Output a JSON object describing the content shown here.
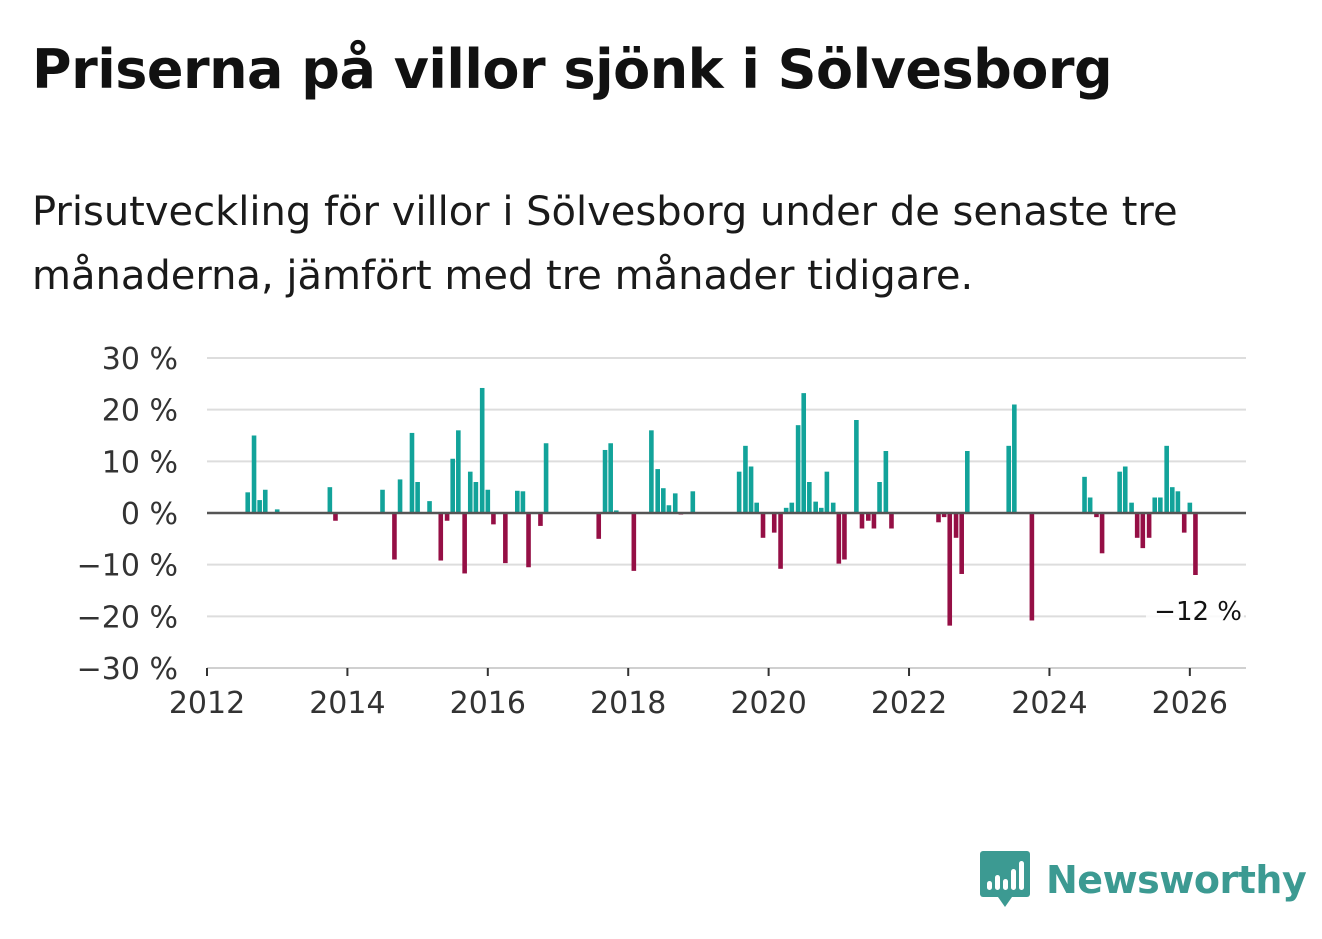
{
  "title": "Priserna på villor sjönk i Sölvesborg",
  "subtitle": "Prisutveckling för villor i Sölvesborg under de senaste tre månaderna, jämfört med tre månader tidigare.",
  "brand": {
    "name": "Newsworthy",
    "icon": "newsworthy-logo-icon",
    "color": "#3c9a92"
  },
  "colors": {
    "positive": "#12a39a",
    "negative": "#950f45",
    "grid": "#dddddd",
    "zero": "#555555"
  },
  "chart_data": {
    "type": "bar",
    "title": "Priserna på villor sjönk i Sölvesborg",
    "xlabel": "",
    "ylabel": "",
    "ylim": [
      -30,
      30
    ],
    "yticks": [
      30,
      20,
      10,
      0,
      -10,
      -20,
      -30
    ],
    "ytick_labels": [
      "30 %",
      "20 %",
      "10 %",
      "0 %",
      "−10 %",
      "−20 %",
      "−30 %"
    ],
    "xlim": [
      2012,
      2026.8
    ],
    "xticks": [
      2012,
      2014,
      2016,
      2018,
      2020,
      2022,
      2024,
      2026
    ],
    "xtick_labels": [
      "2012",
      "2014",
      "2016",
      "2018",
      "2020",
      "2022",
      "2024",
      "2026"
    ],
    "annotation": {
      "text": "−12 %",
      "x": 2026.08,
      "y": -12
    },
    "x": [
      2012.58,
      2012.67,
      2012.75,
      2012.83,
      2013.0,
      2013.75,
      2013.83,
      2014.5,
      2014.67,
      2014.75,
      2014.92,
      2015.0,
      2015.17,
      2015.33,
      2015.42,
      2015.5,
      2015.58,
      2015.67,
      2015.75,
      2015.83,
      2015.92,
      2016.0,
      2016.08,
      2016.25,
      2016.42,
      2016.5,
      2016.58,
      2016.75,
      2016.83,
      2017.58,
      2017.67,
      2017.75,
      2017.83,
      2018.08,
      2018.33,
      2018.42,
      2018.5,
      2018.58,
      2018.67,
      2018.75,
      2018.92,
      2019.58,
      2019.67,
      2019.75,
      2019.83,
      2019.92,
      2020.08,
      2020.17,
      2020.25,
      2020.33,
      2020.42,
      2020.5,
      2020.58,
      2020.67,
      2020.75,
      2020.83,
      2020.92,
      2021.0,
      2021.08,
      2021.25,
      2021.33,
      2021.42,
      2021.5,
      2021.58,
      2021.67,
      2021.75,
      2022.42,
      2022.5,
      2022.58,
      2022.67,
      2022.75,
      2022.83,
      2023.42,
      2023.5,
      2023.75,
      2024.5,
      2024.58,
      2024.67,
      2024.75,
      2025.0,
      2025.08,
      2025.17,
      2025.25,
      2025.33,
      2025.42,
      2025.5,
      2025.58,
      2025.67,
      2025.75,
      2025.83,
      2025.92,
      2026.0,
      2026.08
    ],
    "values": [
      4,
      15,
      2.5,
      4.5,
      0.7,
      5,
      -1.5,
      4.5,
      -9,
      6.5,
      15.5,
      6,
      2.3,
      -9.2,
      -1.5,
      10.5,
      16,
      -11.7,
      8,
      6,
      24.2,
      4.5,
      -2.2,
      -9.7,
      4.3,
      4.2,
      -10.5,
      -2.5,
      13.5,
      -5,
      12.2,
      13.5,
      0.5,
      -11.2,
      16,
      8.5,
      4.8,
      1.5,
      3.8,
      -0.3,
      4.2,
      8,
      13,
      9,
      2,
      -4.8,
      -3.8,
      -10.8,
      1,
      2,
      17,
      23.2,
      6,
      2.2,
      1,
      8,
      2,
      -9.8,
      -9,
      18,
      -3,
      -1.5,
      -3,
      6,
      12,
      -3,
      -1.8,
      -0.8,
      -21.8,
      -4.8,
      -11.8,
      12,
      13,
      21,
      -20.8,
      7,
      3,
      -0.8,
      -7.8,
      8,
      9,
      2,
      -4.8,
      -6.8,
      -4.8,
      3,
      3,
      13,
      5,
      4.2,
      -3.8,
      2,
      -12
    ]
  }
}
